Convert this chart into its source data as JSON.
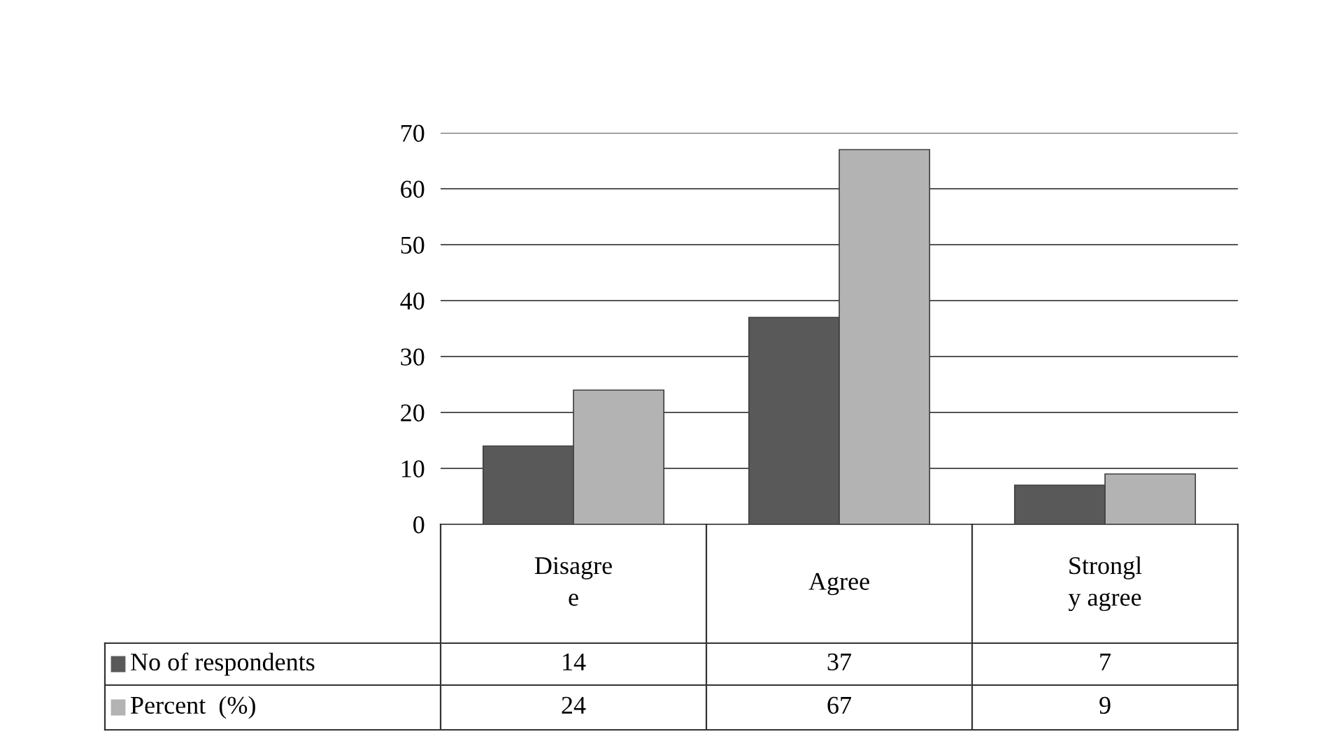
{
  "chart_data": {
    "type": "bar",
    "categories": [
      "Disagre\ne",
      "Agree",
      "Strongl\ny agree"
    ],
    "series": [
      {
        "name": "No of respondents",
        "color": "#595959",
        "values": [
          14,
          37,
          7
        ]
      },
      {
        "name": "Percent  (%)",
        "color": "#b3b3b3",
        "values": [
          24,
          67,
          9
        ]
      }
    ],
    "ylim": [
      0,
      70
    ],
    "yticks": [
      0,
      10,
      20,
      30,
      40,
      50,
      60,
      70
    ],
    "grid": "y",
    "data_labels": true,
    "legend": "bottom"
  }
}
